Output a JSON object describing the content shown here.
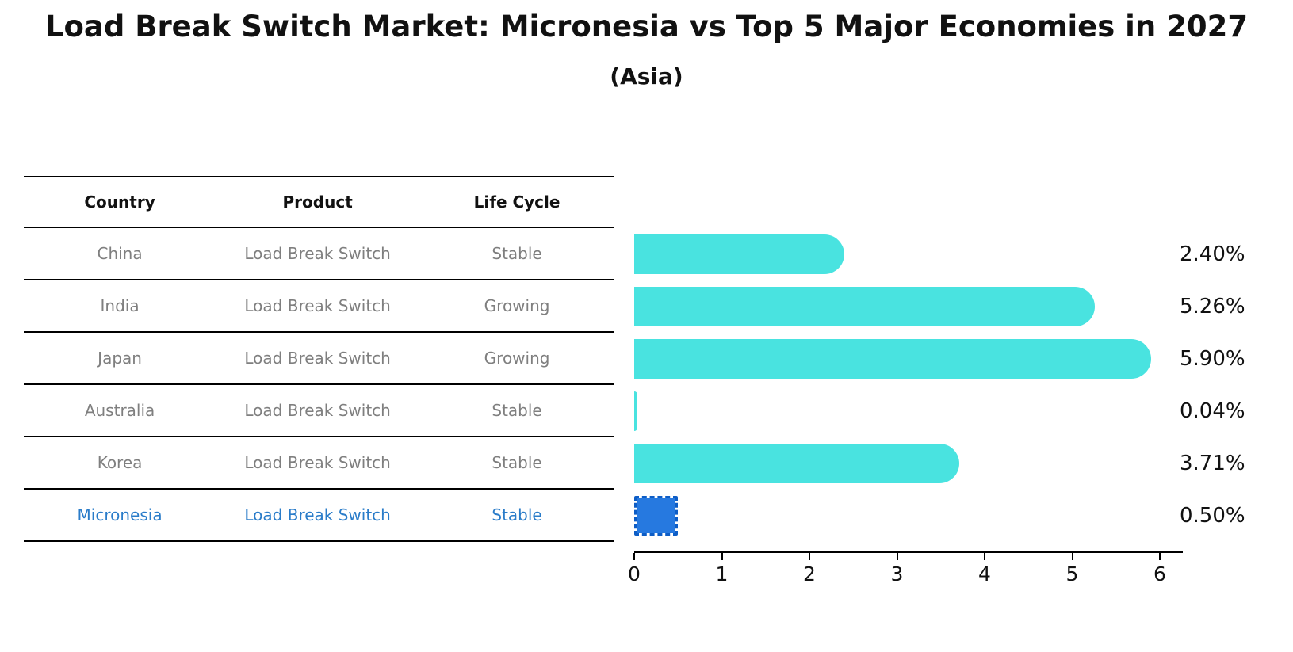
{
  "title": "Load Break Switch Market: Micronesia vs Top 5 Major Economies in 2027",
  "subtitle": "(Asia)",
  "table": {
    "headers": [
      "Country",
      "Product",
      "Life Cycle"
    ],
    "rows": [
      {
        "country": "China",
        "product": "Load Break Switch",
        "life_cycle": "Stable",
        "highlight": false
      },
      {
        "country": "India",
        "product": "Load Break Switch",
        "life_cycle": "Growing",
        "highlight": false
      },
      {
        "country": "Japan",
        "product": "Load Break Switch",
        "life_cycle": "Growing",
        "highlight": false
      },
      {
        "country": "Australia",
        "product": "Load Break Switch",
        "life_cycle": "Stable",
        "highlight": false
      },
      {
        "country": "Korea",
        "product": "Load Break Switch",
        "life_cycle": "Stable",
        "highlight": false
      },
      {
        "country": "Micronesia",
        "product": "Load Break Switch",
        "life_cycle": "Stable",
        "highlight": true
      }
    ]
  },
  "chart_data": {
    "type": "bar",
    "orientation": "horizontal",
    "title": "Load Break Switch Market: Micronesia vs Top 5 Major Economies in 2027",
    "subtitle": "(Asia)",
    "categories": [
      "China",
      "India",
      "Japan",
      "Australia",
      "Korea",
      "Micronesia"
    ],
    "values": [
      2.4,
      5.26,
      5.9,
      0.04,
      3.71,
      0.5
    ],
    "value_labels": [
      "2.40%",
      "5.26%",
      "5.90%",
      "0.04%",
      "3.71%",
      "0.50%"
    ],
    "highlight_index": 5,
    "xlabel": "",
    "ylabel": "",
    "xticks": [
      0,
      1,
      2,
      3,
      4,
      5,
      6
    ],
    "xlim": [
      0,
      6.26
    ],
    "grid": false,
    "legend": null
  },
  "colors": {
    "bar_default": "#49e3e0",
    "bar_highlight": "#2679e0",
    "bar_highlight_border": "#0d5dc6",
    "highlight_text": "#2a7cc9",
    "cell_text": "#7f7f7f",
    "heading_text": "#111111"
  }
}
